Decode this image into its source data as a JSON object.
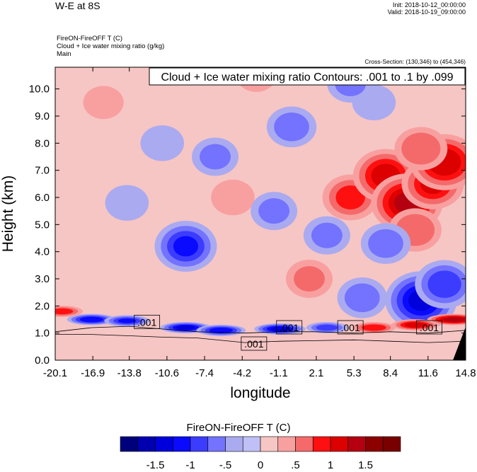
{
  "header": {
    "title": "W-E at 8S",
    "init": "Init: 2018-10-12_00:00:00",
    "valid": "Valid: 2018-10-19_09:00:00",
    "subtitle_lines": [
      "FireON-FireOFF T   (C)",
      "Cloud + Ice water mixing ratio   (g/kg)",
      "Main"
    ],
    "cross_section": "Cross-Section: (130,346) to (454,346)"
  },
  "chart_data": {
    "type": "heatmap",
    "title": "W-E at 8S",
    "xlabel": "longitude",
    "ylabel": "Height (km)",
    "xlim": [
      -20.1,
      14.8
    ],
    "ylim": [
      0.0,
      10.8
    ],
    "x_ticks": [
      "-20.1",
      "-16.9",
      "-13.8",
      "-10.6",
      "-7.4",
      "-4.2",
      "-1.1",
      "2.1",
      "5.3",
      "8.4",
      "11.6",
      "14.8"
    ],
    "x_tick_values": [
      -20.1,
      -16.9,
      -13.8,
      -10.6,
      -7.4,
      -4.2,
      -1.1,
      2.1,
      5.3,
      8.4,
      11.6,
      14.8
    ],
    "y_ticks": [
      "0.0",
      "1.0",
      "2.0",
      "3.0",
      "4.0",
      "5.0",
      "6.0",
      "7.0",
      "8.0",
      "9.0",
      "10.0"
    ],
    "y_tick_values": [
      0,
      1,
      2,
      3,
      4,
      5,
      6,
      7,
      8,
      9,
      10
    ],
    "contour_info": "Cloud + Ice water mixing ratio Contours: .001 to .1 by .099",
    "contour_labels": [
      {
        "text": ".001",
        "x": -12.3,
        "y": 1.4
      },
      {
        "text": ".001",
        "x": -3.2,
        "y": 0.6
      },
      {
        "text": ".001",
        "x": -0.2,
        "y": 1.2
      },
      {
        "text": ".001",
        "x": 5.0,
        "y": 1.2
      },
      {
        "text": ".001",
        "x": 11.7,
        "y": 1.2
      }
    ],
    "anomalies": [
      {
        "x": 5.0,
        "y": 6.0,
        "value": 0.8
      },
      {
        "x": 8.0,
        "y": 6.8,
        "value": 1.1
      },
      {
        "x": 9.8,
        "y": 5.8,
        "value": 1.3
      },
      {
        "x": 12.0,
        "y": 6.5,
        "value": 1.0
      },
      {
        "x": 13.0,
        "y": 7.3,
        "value": 1.2
      },
      {
        "x": 11.0,
        "y": 7.8,
        "value": 0.7
      },
      {
        "x": 10.5,
        "y": 4.8,
        "value": 0.7
      },
      {
        "x": 1.5,
        "y": 3.0,
        "value": 0.5
      },
      {
        "x": -5.0,
        "y": 6.0,
        "value": 0.4
      },
      {
        "x": -3.0,
        "y": 10.5,
        "value": 0.3
      },
      {
        "x": -16.0,
        "y": 9.5,
        "value": 0.3
      },
      {
        "x": 11.0,
        "y": 2.2,
        "value": -1.3
      },
      {
        "x": 13.0,
        "y": 2.8,
        "value": -0.9
      },
      {
        "x": 6.0,
        "y": 2.3,
        "value": -0.6
      },
      {
        "x": 8.0,
        "y": 4.3,
        "value": -0.6
      },
      {
        "x": -9.0,
        "y": 4.2,
        "value": -1.0
      },
      {
        "x": -6.5,
        "y": 7.5,
        "value": -0.5
      },
      {
        "x": 0.0,
        "y": 8.6,
        "value": -0.6
      },
      {
        "x": -1.5,
        "y": 5.5,
        "value": -0.5
      },
      {
        "x": 3.0,
        "y": 4.6,
        "value": -0.5
      },
      {
        "x": -14.0,
        "y": 5.8,
        "value": -0.4
      },
      {
        "x": -11.0,
        "y": 8.0,
        "value": -0.4
      },
      {
        "x": 7.0,
        "y": 9.5,
        "value": -0.4
      },
      {
        "x": 5.0,
        "y": 10.2,
        "value": -0.5
      },
      {
        "x": -17.0,
        "y": 1.5,
        "value": -1.2
      },
      {
        "x": -14.0,
        "y": 1.45,
        "value": -1.0
      },
      {
        "x": -9.0,
        "y": 1.2,
        "value": -1.3
      },
      {
        "x": -6.0,
        "y": 1.1,
        "value": -1.2
      },
      {
        "x": -1.0,
        "y": 1.15,
        "value": -1.3
      },
      {
        "x": 3.0,
        "y": 1.2,
        "value": -0.8
      },
      {
        "x": 7.0,
        "y": 1.2,
        "value": 0.9
      },
      {
        "x": 10.5,
        "y": 1.3,
        "value": 1.1
      },
      {
        "x": 13.8,
        "y": 1.5,
        "value": 1.4
      },
      {
        "x": -19.5,
        "y": 1.8,
        "value": 0.8
      }
    ],
    "colorbar": {
      "title": "FireON-FireOFF T  (C)",
      "levels": [
        -1.75,
        -1.5,
        -1.25,
        -1,
        -0.75,
        -0.5,
        -0.25,
        0,
        0.25,
        0.5,
        0.75,
        1,
        1.25,
        1.5,
        1.75
      ],
      "colors": [
        "#00007c",
        "#0000b0",
        "#0000dc",
        "#0a0aff",
        "#3c3cff",
        "#7373ff",
        "#aaaaf0",
        "#c0c0f6",
        "#f6c6c4",
        "#f8a0a0",
        "#f46a6a",
        "#ff1010",
        "#dc0000",
        "#b40010",
        "#8c0000",
        "#780000"
      ],
      "tick_labels": [
        "-1.5",
        "-1",
        "-.5",
        "0",
        ".5",
        "1",
        "1.5"
      ],
      "tick_values": [
        -1.5,
        -1,
        -0.5,
        0,
        0.5,
        1,
        1.5
      ]
    }
  }
}
